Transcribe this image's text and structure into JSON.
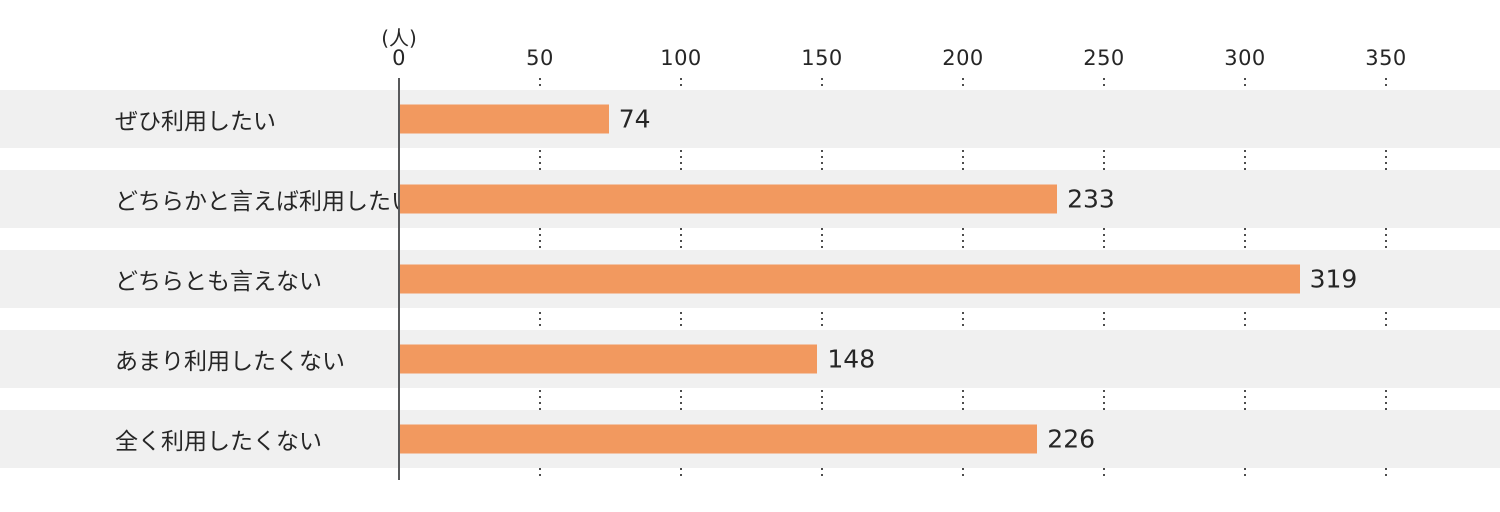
{
  "chart_data": {
    "type": "bar",
    "orientation": "horizontal",
    "title": "",
    "unit_label": "(人)",
    "categories": [
      "ぜひ利用したい",
      "どちらかと言えば利用したい",
      "どちらとも言えない",
      "あまり利用したくない",
      "全く利用したくない"
    ],
    "values": [
      74,
      233,
      319,
      148,
      226
    ],
    "x_ticks": [
      "0",
      "50",
      "100",
      "150",
      "200",
      "250",
      "300",
      "350"
    ],
    "xlim": [
      0,
      390
    ],
    "grid": "dotted-vertical",
    "legend": "none",
    "colors": {
      "bar": "#F2995F",
      "row_stripe": "#F0F0F0",
      "axis_line": "#58595B",
      "grid_dot": "#4D4D4D",
      "text": "#262626"
    }
  }
}
